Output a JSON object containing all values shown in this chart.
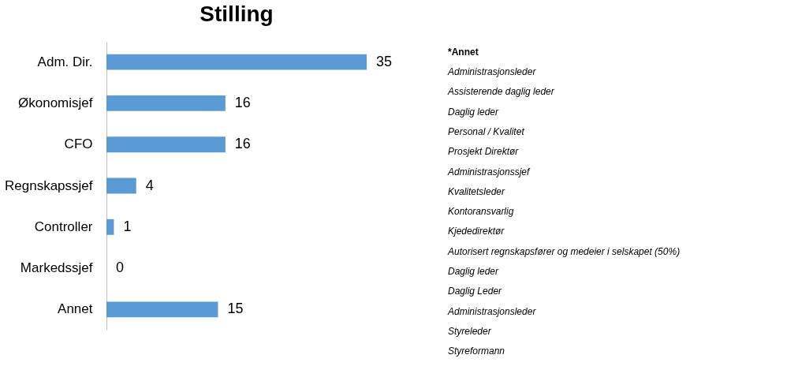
{
  "chart_data": {
    "type": "bar",
    "orientation": "horizontal",
    "title": "Stilling",
    "categories": [
      "Adm. Dir.",
      "Økonomisjef",
      "CFO",
      "Regnskapssjef",
      "Controller",
      "Markedssjef",
      "Annet"
    ],
    "values": [
      35,
      16,
      16,
      4,
      1,
      0,
      15
    ],
    "color": "#5b9bd5",
    "data_labels": true,
    "grid": false,
    "annotations": [
      "*Annet",
      "Administrasjonsleder",
      "Assisterende daglig leder",
      "Daglig leder",
      "Personal / Kvalitet",
      "Prosjekt Direktør",
      "Administrasjonssjef",
      "Kvalitetsleder",
      "Kontoransvarlig",
      "Kjededirektør",
      "Autorisert regnskapsfører og medeier i selskapet (50%)",
      "Daglig leder",
      "Daglig Leder",
      "Administrasjonsleder",
      "Styreleder",
      "Styreformann"
    ]
  }
}
